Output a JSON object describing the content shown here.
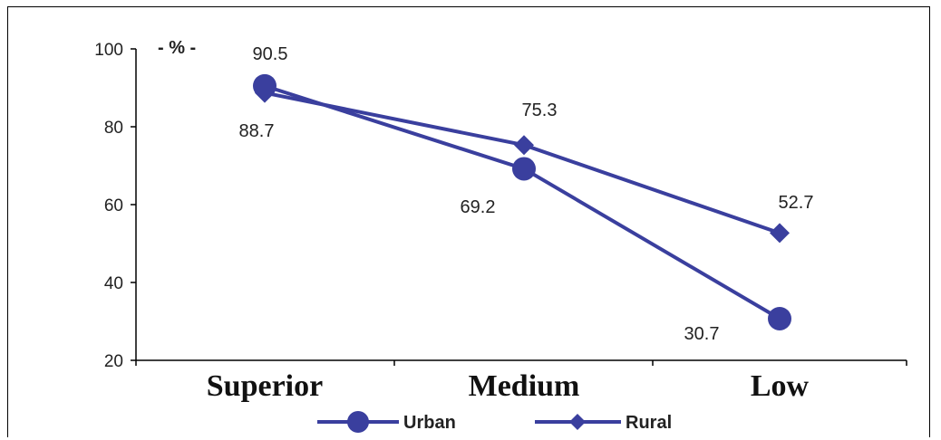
{
  "chart_data": {
    "type": "line",
    "title": "",
    "xlabel": "",
    "ylabel": "",
    "unit_label": "- % -",
    "categories": [
      "Superior",
      "Medium",
      "Low"
    ],
    "ylim": [
      20,
      100
    ],
    "yticks": [
      20,
      40,
      60,
      80,
      100
    ],
    "grid": false,
    "legend_position": "bottom",
    "series": [
      {
        "name": "Urban",
        "values": [
          90.5,
          69.2,
          30.7
        ],
        "marker": "circle",
        "color": "#3a3f9e"
      },
      {
        "name": "Rural",
        "values": [
          88.7,
          75.3,
          52.7
        ],
        "marker": "diamond",
        "color": "#3a3f9e"
      }
    ]
  }
}
